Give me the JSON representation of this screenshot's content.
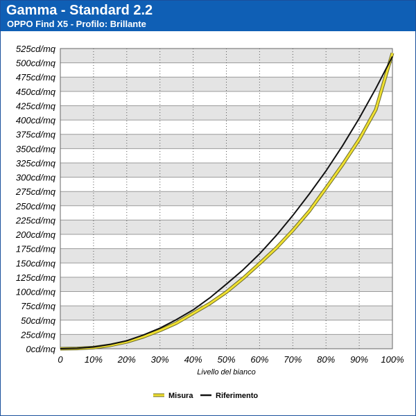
{
  "header": {
    "title": "Gamma - Standard 2.2",
    "subtitle": "OPPO Find X5 - Profilo: Brillante"
  },
  "colors": {
    "header_bg": "#0f5fb5",
    "band_dark": "#e4e4e4",
    "band_light": "#ffffff",
    "measured": "#f0e030",
    "reference": "#111111"
  },
  "chart_data": {
    "type": "line",
    "title": "Gamma - Standard 2.2",
    "subtitle": "OPPO Find X5 - Profilo: Brillante",
    "xlabel": "Livello del bianco",
    "ylabel": "",
    "xlim": [
      0,
      100
    ],
    "ylim": [
      0,
      525
    ],
    "x_ticks": [
      "0",
      "10%",
      "20%",
      "30%",
      "40%",
      "50%",
      "60%",
      "70%",
      "80%",
      "90%",
      "100%"
    ],
    "y_ticks": [
      "0cd/mq",
      "25cd/mq",
      "50cd/mq",
      "75cd/mq",
      "100cd/mq",
      "125cd/mq",
      "150cd/mq",
      "175cd/mq",
      "200cd/mq",
      "225cd/mq",
      "250cd/mq",
      "275cd/mq",
      "300cd/mq",
      "325cd/mq",
      "350cd/mq",
      "375cd/mq",
      "400cd/mq",
      "425cd/mq",
      "450cd/mq",
      "475cd/mq",
      "500cd/mq",
      "525cd/mq"
    ],
    "grid": true,
    "legend_position": "bottom",
    "x": [
      0,
      5,
      10,
      15,
      20,
      25,
      30,
      35,
      40,
      45,
      50,
      55,
      60,
      65,
      70,
      75,
      80,
      85,
      90,
      95,
      100
    ],
    "series": [
      {
        "name": "Misura",
        "values": [
          0,
          0.5,
          2,
          6,
          12,
          21,
          32,
          45,
          62,
          79,
          99,
          123,
          149,
          176,
          207,
          241,
          281,
          322,
          366,
          418,
          517
        ]
      },
      {
        "name": "Riferimento",
        "values": [
          0,
          0.7,
          3,
          7.5,
          14,
          24,
          36,
          51,
          68,
          89,
          113,
          138,
          166,
          198,
          233,
          271,
          311,
          355,
          403,
          455,
          511
        ]
      }
    ]
  }
}
